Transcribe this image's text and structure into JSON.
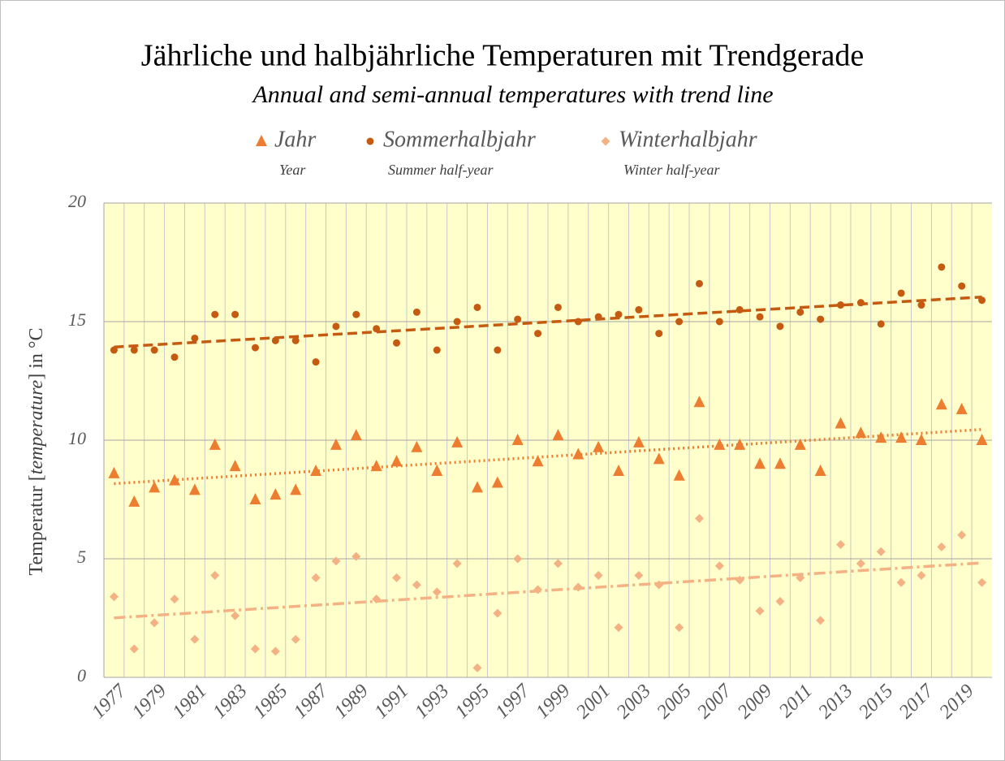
{
  "chart_data": {
    "type": "scatter",
    "title": "Jährliche und halbjährliche Temperaturen mit Trendgerade",
    "subtitle": "Annual and semi-annual temperatures with trend line",
    "ylabel_parts": [
      "Temperatur [",
      "temperature",
      "] in °C"
    ],
    "categories": [
      "1977",
      null,
      "1979",
      null,
      "1981",
      null,
      "1983",
      null,
      "1985",
      null,
      "1987",
      null,
      "1989",
      null,
      "1991",
      null,
      "1993",
      null,
      "1995",
      null,
      "1997",
      null,
      "1999",
      null,
      "2001",
      null,
      "2003",
      null,
      "2005",
      null,
      "2007",
      null,
      "2009",
      null,
      "2011",
      null,
      "2013",
      null,
      "2015",
      null,
      "2017",
      null,
      "2019",
      null
    ],
    "series": [
      {
        "name": "Jahr",
        "name_en": "Year",
        "color": "#ed7d31",
        "marker": "triangle",
        "trend_style": "dotted",
        "values": [
          8.6,
          7.4,
          8.0,
          8.3,
          7.9,
          9.8,
          8.9,
          7.5,
          7.7,
          7.9,
          8.7,
          9.8,
          10.2,
          8.9,
          9.1,
          9.7,
          8.7,
          9.9,
          8.0,
          8.2,
          10.0,
          9.1,
          10.2,
          9.4,
          9.7,
          8.7,
          9.9,
          9.2,
          8.5,
          11.6,
          9.8,
          9.8,
          9.0,
          9.0,
          9.8,
          8.7,
          10.7,
          10.3,
          10.1,
          10.1,
          10.0,
          11.5,
          11.3,
          10.0
        ]
      },
      {
        "name": "Sommerhalbjahr",
        "name_en": "Summer half-year",
        "color": "#c55a11",
        "marker": "circle",
        "trend_style": "dashed",
        "values": [
          13.8,
          13.8,
          13.8,
          13.5,
          14.3,
          15.3,
          15.3,
          13.9,
          14.2,
          14.2,
          13.3,
          14.8,
          15.3,
          14.7,
          14.1,
          15.4,
          13.8,
          15.0,
          15.6,
          13.8,
          15.1,
          14.5,
          15.6,
          15.0,
          15.2,
          15.3,
          15.5,
          14.5,
          15.0,
          16.6,
          15.0,
          15.5,
          15.2,
          14.8,
          15.4,
          15.1,
          15.7,
          15.8,
          14.9,
          16.2,
          15.7,
          17.3,
          16.5,
          15.9
        ]
      },
      {
        "name": "Winterhalbjahr",
        "name_en": "Winter half-year",
        "color": "#f4b183",
        "marker": "diamond",
        "trend_style": "dashdot",
        "values": [
          3.4,
          1.2,
          2.3,
          3.3,
          1.6,
          4.3,
          2.6,
          1.2,
          1.1,
          1.6,
          4.2,
          4.9,
          5.1,
          3.3,
          4.2,
          3.9,
          3.6,
          4.8,
          0.4,
          2.7,
          5.0,
          3.7,
          4.8,
          3.8,
          4.3,
          2.1,
          4.3,
          3.9,
          2.1,
          6.7,
          4.7,
          4.1,
          2.8,
          3.2,
          4.2,
          2.4,
          5.6,
          4.8,
          5.3,
          4.0,
          4.3,
          5.5,
          6.0,
          4.0
        ]
      }
    ],
    "trendline": "linear",
    "ylim": [
      0,
      20
    ],
    "yticks": [
      0,
      5,
      10,
      15,
      20
    ],
    "grid": true,
    "background": "#ffffcc"
  }
}
